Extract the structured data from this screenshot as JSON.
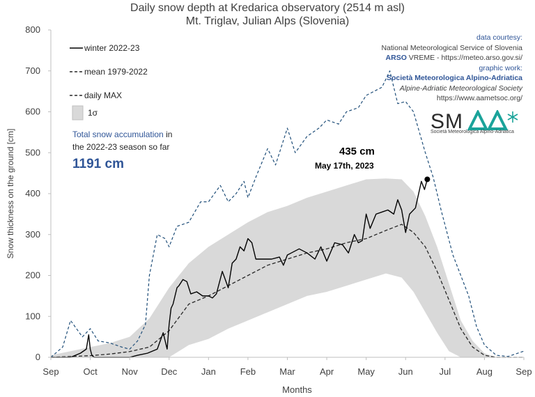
{
  "header": {
    "title_line1": "Daily snow depth at Kredarica observatory (2514 m asl)",
    "title_line2": "Mt. Triglav, Julian Alps  (Slovenia)"
  },
  "legend": {
    "winter": "winter 2022-23",
    "mean": "mean 1979-2022",
    "max": "daily MAX",
    "sigma": "1σ"
  },
  "accumulation": {
    "line1_highlight": "Total snow accumulation",
    "line1_rest": " in",
    "line2": "the 2022-23 season so far",
    "value": "1191 cm"
  },
  "credits": {
    "line1": "data courtesy:",
    "line2": "National Meteorological Service of Slovenia",
    "line3_bold": "ARSO",
    "line3_rest": " VREME - https://meteo.arso.gov.si/",
    "line4": "graphic work:",
    "line5": "Società Meteorologica Alpino-Adriatica",
    "line6": "Alpine-Adriatic Meteorological Society",
    "line7": "https://www.aametsoc.org/"
  },
  "logo": {
    "letters": "SMAA",
    "caption": "Società Meteorologica Alpino-Adriatica"
  },
  "annotation": {
    "value": "435 cm",
    "date": "May 17th, 2023"
  },
  "colors": {
    "winter": "#000000",
    "mean": "#262626",
    "max": "#1f4e79",
    "band": "#d9d9d9",
    "accent": "#2f5597",
    "logo_teal": "#1aa39a"
  },
  "chart_data": {
    "type": "line",
    "title": "Daily snow depth at Kredarica observatory (2514 m asl)",
    "subtitle": "Mt. Triglav, Julian Alps  (Slovenia)",
    "xlabel": "Months",
    "ylabel": "Snow thickness on the ground [cm]",
    "x_ticks": [
      "Sep",
      "Oct",
      "Nov",
      "Dec",
      "Jan",
      "Feb",
      "Mar",
      "Apr",
      "May",
      "Jun",
      "Jul",
      "Aug",
      "Sep"
    ],
    "y_ticks": [
      0,
      100,
      200,
      300,
      400,
      500,
      600,
      700,
      800
    ],
    "ylim": [
      0,
      800
    ],
    "xlim": [
      0,
      12
    ],
    "x_unit": "months since Sep 1",
    "grid": false,
    "legend_position": "top-left",
    "series": [
      {
        "name": "winter 2022-23",
        "style": "solid",
        "x": [
          0.0,
          0.5,
          0.75,
          0.9,
          0.96,
          1.0,
          1.04,
          1.1,
          1.3,
          1.6,
          2.0,
          2.2,
          2.45,
          2.7,
          2.85,
          2.95,
          3.0,
          3.05,
          3.1,
          3.2,
          3.25,
          3.35,
          3.45,
          3.55,
          3.7,
          3.85,
          4.0,
          4.1,
          4.2,
          4.35,
          4.5,
          4.6,
          4.7,
          4.8,
          4.9,
          5.0,
          5.1,
          5.2,
          5.4,
          5.6,
          5.8,
          5.9,
          6.0,
          6.1,
          6.3,
          6.5,
          6.7,
          6.85,
          7.0,
          7.2,
          7.4,
          7.55,
          7.7,
          7.8,
          7.9,
          8.0,
          8.1,
          8.25,
          8.4,
          8.55,
          8.7,
          8.8,
          8.9,
          9.0,
          9.1,
          9.25,
          9.4,
          9.48,
          9.55
        ],
        "y": [
          0,
          0,
          10,
          20,
          55,
          20,
          5,
          0,
          0,
          0,
          0,
          5,
          10,
          20,
          60,
          20,
          80,
          120,
          130,
          170,
          175,
          190,
          185,
          155,
          160,
          150,
          150,
          145,
          155,
          210,
          170,
          230,
          240,
          270,
          260,
          290,
          280,
          240,
          240,
          240,
          245,
          225,
          250,
          255,
          265,
          255,
          240,
          270,
          235,
          280,
          275,
          255,
          300,
          280,
          285,
          350,
          315,
          350,
          355,
          360,
          350,
          385,
          360,
          305,
          350,
          365,
          430,
          410,
          435
        ]
      },
      {
        "name": "mean 1979-2022",
        "style": "dashed",
        "x": [
          0,
          0.5,
          1,
          1.5,
          2,
          2.5,
          3,
          3.5,
          4,
          4.5,
          5,
          5.5,
          6,
          6.5,
          7,
          7.5,
          8,
          8.5,
          8.9,
          9.2,
          9.5,
          9.8,
          10.1,
          10.4,
          10.7,
          11,
          11.3,
          11.6,
          12
        ],
        "y": [
          0,
          2,
          4,
          8,
          14,
          25,
          65,
          130,
          150,
          175,
          200,
          225,
          240,
          255,
          265,
          280,
          290,
          310,
          325,
          305,
          270,
          210,
          140,
          70,
          25,
          5,
          0,
          0,
          0
        ]
      },
      {
        "name": "daily MAX",
        "style": "dashed",
        "x": [
          0,
          0.3,
          0.5,
          0.8,
          1.0,
          1.2,
          1.5,
          1.8,
          2.0,
          2.2,
          2.4,
          2.5,
          2.7,
          2.9,
          3.0,
          3.2,
          3.5,
          3.8,
          4.0,
          4.3,
          4.5,
          4.7,
          4.9,
          5.0,
          5.2,
          5.5,
          5.7,
          6.0,
          6.2,
          6.5,
          6.8,
          7.0,
          7.3,
          7.5,
          7.8,
          8.0,
          8.2,
          8.4,
          8.6,
          8.8,
          9.0,
          9.2,
          9.5,
          9.7,
          9.9,
          10.2,
          10.4,
          10.6,
          10.8,
          11.0,
          11.3,
          11.6,
          12
        ],
        "y": [
          0,
          25,
          90,
          50,
          70,
          40,
          35,
          25,
          20,
          40,
          80,
          200,
          300,
          290,
          270,
          320,
          330,
          380,
          380,
          420,
          380,
          400,
          430,
          390,
          440,
          510,
          470,
          560,
          500,
          540,
          560,
          580,
          570,
          600,
          610,
          640,
          650,
          660,
          700,
          620,
          625,
          600,
          500,
          440,
          360,
          250,
          200,
          150,
          75,
          30,
          5,
          2,
          15
        ]
      },
      {
        "name": "1σ",
        "type": "band",
        "x": [
          0,
          0.5,
          1,
          1.5,
          2,
          2.5,
          3,
          3.5,
          4,
          4.5,
          5,
          5.5,
          6,
          6.5,
          7,
          7.5,
          8,
          8.5,
          8.9,
          9.2,
          9.5,
          9.8,
          10.1,
          10.4,
          10.7,
          11,
          11.3,
          11.6,
          12
        ],
        "upper": [
          5,
          15,
          25,
          35,
          50,
          95,
          170,
          230,
          270,
          300,
          330,
          355,
          370,
          390,
          405,
          420,
          435,
          437,
          435,
          405,
          345,
          270,
          180,
          90,
          40,
          10,
          0,
          0,
          0
        ],
        "lower": [
          0,
          0,
          0,
          0,
          0,
          0,
          0,
          30,
          45,
          70,
          90,
          110,
          130,
          150,
          160,
          175,
          190,
          205,
          195,
          160,
          110,
          60,
          15,
          0,
          0,
          0,
          0,
          0,
          0
        ]
      }
    ],
    "annotations": [
      {
        "x": 9.55,
        "y": 435,
        "label": "435 cm",
        "sublabel": "May 17th, 2023"
      }
    ]
  }
}
